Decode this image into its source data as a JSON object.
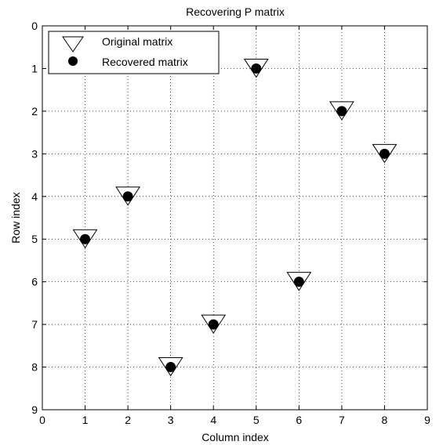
{
  "chart_data": {
    "type": "scatter",
    "title": "Recovering P matrix",
    "xlabel": "Column index",
    "ylabel": "Row index",
    "xlim": [
      0,
      9
    ],
    "ylim": [
      0,
      9
    ],
    "y_reversed": true,
    "xticks": [
      0,
      1,
      2,
      3,
      4,
      5,
      6,
      7,
      8,
      9
    ],
    "yticks": [
      0,
      1,
      2,
      3,
      4,
      5,
      6,
      7,
      8,
      9
    ],
    "grid": true,
    "grid_style": "dotted",
    "legend_position": "top-left",
    "series": [
      {
        "name": "Original matrix",
        "marker": "triangle-down-open",
        "color": "#000000",
        "points": [
          [
            1,
            5
          ],
          [
            2,
            4
          ],
          [
            3,
            8
          ],
          [
            4,
            7
          ],
          [
            5,
            1
          ],
          [
            6,
            6
          ],
          [
            7,
            2
          ],
          [
            8,
            3
          ]
        ]
      },
      {
        "name": "Recovered matrix",
        "marker": "circle-filled",
        "color": "#000000",
        "points": [
          [
            1,
            5
          ],
          [
            2,
            4
          ],
          [
            3,
            8
          ],
          [
            4,
            7
          ],
          [
            5,
            1
          ],
          [
            6,
            6
          ],
          [
            7,
            2
          ],
          [
            8,
            3
          ]
        ]
      }
    ]
  }
}
